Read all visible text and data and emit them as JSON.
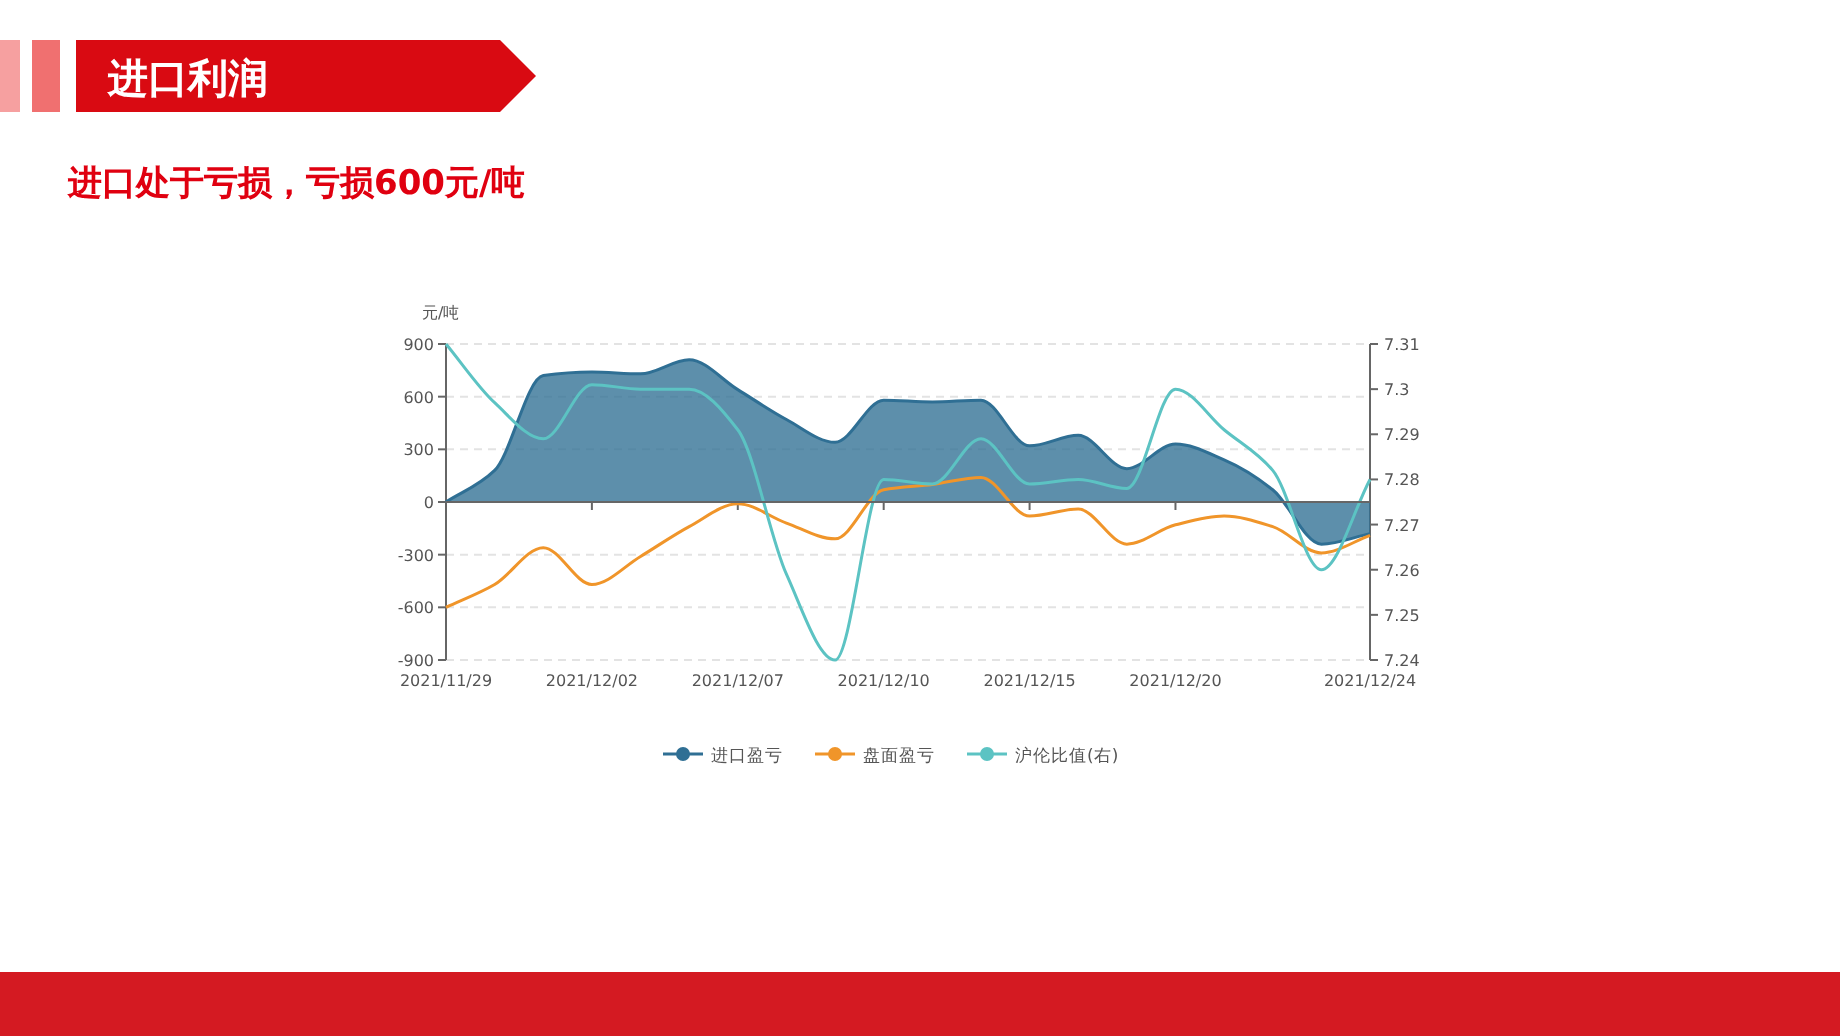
{
  "chart_data": {
    "type": "line",
    "title": "进口利润",
    "subtitle": "进口处于亏损，亏损600元/吨",
    "ylabel": "元/吨",
    "categories": [
      "2021/11/29",
      null,
      null,
      "2021/12/02",
      null,
      null,
      "2021/12/07",
      null,
      null,
      "2021/12/10",
      null,
      null,
      "2021/12/15",
      null,
      null,
      "2021/12/20",
      null,
      null,
      null,
      "2021/12/24"
    ],
    "series": [
      {
        "name": "进口盈亏",
        "type": "area",
        "color": "#2f6f94",
        "values": [
          0,
          180,
          720,
          740,
          730,
          810,
          640,
          470,
          340,
          580,
          570,
          580,
          320,
          380,
          190,
          330,
          240,
          70,
          -240,
          -180
        ]
      },
      {
        "name": "盘面盈亏",
        "type": "line",
        "color": "#f0952a",
        "values": [
          -600,
          -470,
          -260,
          -470,
          -310,
          -140,
          -10,
          -120,
          -210,
          70,
          100,
          140,
          -80,
          -40,
          -240,
          -130,
          -80,
          -140,
          -290,
          -190
        ]
      },
      {
        "name": "沪伦比值(右)",
        "type": "line",
        "axis": "y2",
        "color": "#5cc3c3",
        "values": [
          7.31,
          7.297,
          7.289,
          7.301,
          7.3,
          7.3,
          7.291,
          7.259,
          7.24,
          7.28,
          7.279,
          7.289,
          7.279,
          7.28,
          7.278,
          7.3,
          7.291,
          7.282,
          7.26,
          7.28
        ]
      }
    ],
    "ylim": [
      -900,
      900
    ],
    "yticks": [
      -900,
      -600,
      -300,
      0,
      300,
      600,
      900
    ],
    "y2lim": [
      7.24,
      7.31
    ],
    "y2ticks": [
      7.24,
      7.25,
      7.26,
      7.27,
      7.28,
      7.29,
      7.3,
      7.31
    ],
    "grid": "y",
    "legend": "bottom",
    "marker": "none"
  }
}
